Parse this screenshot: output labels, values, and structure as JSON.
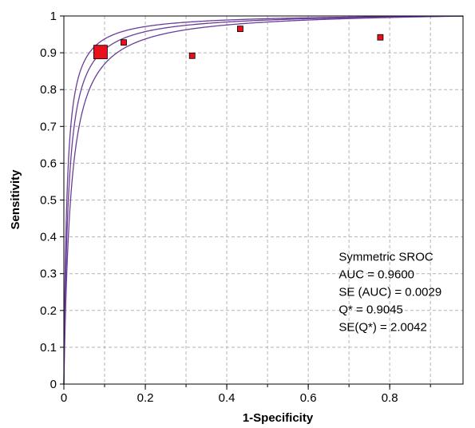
{
  "chart_data": {
    "type": "scatter",
    "title": "",
    "xlabel": "1-Specificity",
    "ylabel": "Sensitivity",
    "xlim": [
      0,
      0.98
    ],
    "ylim": [
      0,
      1
    ],
    "x_ticks": [
      "0",
      "0.2",
      "0.4",
      "0.6",
      "0.8"
    ],
    "x_tick_values": [
      0,
      0.2,
      0.4,
      0.6,
      0.8
    ],
    "y_ticks": [
      "0",
      "0.1",
      "0.2",
      "0.3",
      "0.4",
      "0.5",
      "0.6",
      "0.7",
      "0.8",
      "0.9",
      "1"
    ],
    "y_tick_values": [
      0,
      0.1,
      0.2,
      0.3,
      0.4,
      0.5,
      0.6,
      0.7,
      0.8,
      0.9,
      1
    ],
    "grid": true,
    "curve_color": "#6a3d9a",
    "marker_color": "#e8101c",
    "sroc_curves": [
      {
        "role": "lower-bound",
        "dor": 60
      },
      {
        "role": "fitted",
        "dor": 90
      },
      {
        "role": "upper-bound",
        "dor": 135
      }
    ],
    "points": [
      {
        "x": 0.09,
        "y": 0.902,
        "weight": 3
      },
      {
        "x": 0.147,
        "y": 0.928,
        "weight": 1
      },
      {
        "x": 0.315,
        "y": 0.892,
        "weight": 1
      },
      {
        "x": 0.433,
        "y": 0.965,
        "weight": 1
      },
      {
        "x": 0.777,
        "y": 0.942,
        "weight": 1
      }
    ],
    "annotation_lines": [
      "Symmetric SROC",
      "AUC = 0.9600",
      "SE (AUC) = 0.0029",
      "Q* = 0.9045",
      "SE(Q*) = 2.0042"
    ],
    "annotation_anchor": {
      "x": 0.675,
      "y": 0.335
    }
  }
}
